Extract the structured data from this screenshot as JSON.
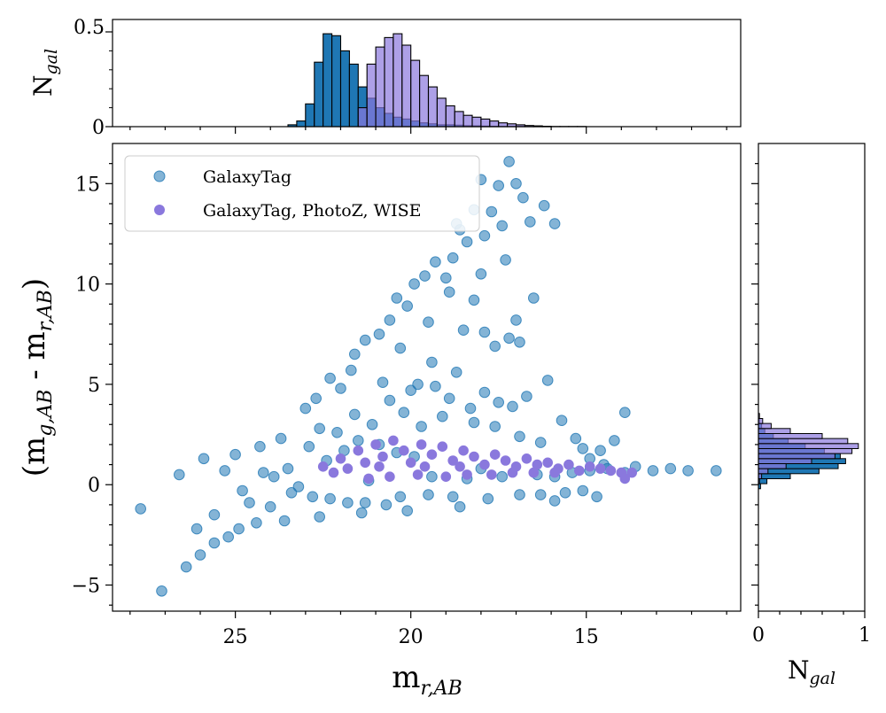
{
  "chart_data": {
    "type": "scatter",
    "layout": "scatter with marginal histograms",
    "main": {
      "xlabel": "m_{r,AB}",
      "ylabel": "(m_{g,AB} - m_{r,AB})",
      "xlim": [
        28.5,
        10.6
      ],
      "ylim": [
        -6.3,
        17.0
      ],
      "x_inverted": true,
      "xticks": [
        25,
        20,
        15
      ],
      "xtick_labels": [
        "25",
        "20",
        "15"
      ],
      "yticks": [
        -5,
        0,
        5,
        10,
        15
      ],
      "ytick_labels": [
        "−5",
        "0",
        "5",
        "10",
        "15"
      ],
      "legend_position": "top-left",
      "series": [
        {
          "name": "GalaxyTag",
          "color": "#1f77b4",
          "alpha": 0.55,
          "points": [
            [
              27.1,
              -5.3
            ],
            [
              26.4,
              -4.1
            ],
            [
              27.7,
              -1.2
            ],
            [
              26.0,
              -3.5
            ],
            [
              25.6,
              -2.9
            ],
            [
              25.2,
              -2.6
            ],
            [
              24.9,
              -2.2
            ],
            [
              24.4,
              -1.9
            ],
            [
              24.0,
              -1.1
            ],
            [
              23.4,
              -0.4
            ],
            [
              22.8,
              -0.6
            ],
            [
              22.3,
              -0.7
            ],
            [
              21.8,
              -0.9
            ],
            [
              21.3,
              -0.9
            ],
            [
              20.7,
              -1.0
            ],
            [
              20.3,
              -0.6
            ],
            [
              19.5,
              -0.5
            ],
            [
              18.8,
              -0.6
            ],
            [
              17.8,
              -0.7
            ],
            [
              16.9,
              -0.5
            ],
            [
              16.3,
              -0.5
            ],
            [
              15.6,
              -0.4
            ],
            [
              15.1,
              -0.3
            ],
            [
              14.7,
              -0.6
            ],
            [
              26.6,
              0.5
            ],
            [
              25.9,
              1.3
            ],
            [
              25.0,
              1.5
            ],
            [
              24.3,
              1.9
            ],
            [
              23.7,
              2.3
            ],
            [
              23.0,
              3.8
            ],
            [
              22.6,
              2.8
            ],
            [
              22.3,
              5.3
            ],
            [
              22.0,
              4.8
            ],
            [
              21.6,
              6.5
            ],
            [
              21.3,
              7.2
            ],
            [
              20.9,
              7.5
            ],
            [
              20.6,
              8.2
            ],
            [
              20.3,
              6.8
            ],
            [
              20.1,
              8.9
            ],
            [
              19.9,
              10.0
            ],
            [
              19.6,
              10.4
            ],
            [
              19.3,
              11.1
            ],
            [
              19.0,
              10.3
            ],
            [
              18.8,
              11.3
            ],
            [
              18.6,
              12.7
            ],
            [
              18.4,
              12.1
            ],
            [
              18.2,
              13.7
            ],
            [
              18.0,
              15.2
            ],
            [
              17.9,
              12.4
            ],
            [
              17.7,
              13.6
            ],
            [
              17.5,
              14.9
            ],
            [
              17.4,
              12.9
            ],
            [
              17.2,
              16.1
            ],
            [
              17.0,
              15.0
            ],
            [
              16.8,
              14.3
            ],
            [
              16.6,
              13.1
            ],
            [
              16.5,
              9.3
            ],
            [
              16.2,
              13.9
            ],
            [
              15.9,
              13.0
            ],
            [
              18.9,
              9.6
            ],
            [
              18.5,
              7.7
            ],
            [
              18.2,
              9.2
            ],
            [
              17.9,
              7.6
            ],
            [
              17.6,
              6.9
            ],
            [
              17.2,
              7.3
            ],
            [
              16.9,
              7.1
            ],
            [
              19.4,
              6.1
            ],
            [
              19.8,
              5.0
            ],
            [
              18.9,
              4.3
            ],
            [
              18.3,
              3.8
            ],
            [
              17.9,
              4.6
            ],
            [
              17.5,
              4.1
            ],
            [
              17.1,
              3.9
            ],
            [
              16.7,
              4.4
            ],
            [
              16.1,
              5.2
            ],
            [
              15.7,
              3.2
            ],
            [
              15.3,
              2.3
            ],
            [
              14.9,
              1.3
            ],
            [
              14.5,
              1.0
            ],
            [
              14.2,
              2.2
            ],
            [
              13.9,
              3.6
            ],
            [
              13.6,
              0.9
            ],
            [
              13.1,
              0.7
            ],
            [
              12.6,
              0.8
            ],
            [
              12.1,
              0.7
            ],
            [
              11.3,
              0.7
            ],
            [
              19.4,
              0.4
            ],
            [
              18.4,
              0.3
            ],
            [
              17.4,
              0.4
            ],
            [
              16.4,
              0.5
            ],
            [
              15.9,
              0.4
            ],
            [
              15.4,
              0.6
            ],
            [
              14.9,
              0.7
            ],
            [
              14.4,
              0.8
            ],
            [
              16.9,
              2.4
            ],
            [
              17.6,
              2.9
            ],
            [
              18.2,
              3.1
            ],
            [
              19.1,
              3.4
            ],
            [
              15.1,
              1.8
            ],
            [
              14.6,
              1.7
            ],
            [
              16.3,
              2.1
            ],
            [
              13.9,
              0.6
            ],
            [
              24.6,
              -0.9
            ],
            [
              23.9,
              0.4
            ],
            [
              23.5,
              0.8
            ],
            [
              22.9,
              1.9
            ],
            [
              22.1,
              2.6
            ],
            [
              21.6,
              3.5
            ],
            [
              21.1,
              3.0
            ],
            [
              20.6,
              4.2
            ],
            [
              20.2,
              3.6
            ],
            [
              19.7,
              2.9
            ],
            [
              26.1,
              -2.2
            ],
            [
              25.6,
              -1.5
            ],
            [
              24.8,
              -0.3
            ],
            [
              24.2,
              0.6
            ],
            [
              22.4,
              1.2
            ],
            [
              21.9,
              1.7
            ],
            [
              21.5,
              2.2
            ],
            [
              20.9,
              2.0
            ],
            [
              20.4,
              1.6
            ],
            [
              19.9,
              1.4
            ],
            [
              25.3,
              0.7
            ],
            [
              23.2,
              -0.1
            ],
            [
              21.2,
              0.2
            ],
            [
              18.0,
              0.8
            ],
            [
              22.7,
              4.3
            ],
            [
              21.7,
              5.7
            ],
            [
              20.8,
              5.1
            ],
            [
              20.0,
              4.7
            ],
            [
              19.3,
              4.9
            ],
            [
              18.7,
              5.6
            ],
            [
              19.5,
              8.1
            ],
            [
              20.4,
              9.3
            ],
            [
              17.0,
              8.2
            ],
            [
              18.0,
              10.5
            ],
            [
              18.7,
              13.0
            ],
            [
              17.3,
              11.2
            ],
            [
              23.6,
              -1.8
            ],
            [
              22.6,
              -1.6
            ],
            [
              21.4,
              -1.4
            ],
            [
              20.1,
              -1.3
            ],
            [
              18.6,
              -1.1
            ],
            [
              15.9,
              -0.8
            ]
          ]
        },
        {
          "name": "GalaxyTag, PhotoZ, WISE",
          "color": "#8a78dd",
          "points": [
            [
              22.5,
              0.9
            ],
            [
              22.2,
              0.6
            ],
            [
              22.0,
              1.3
            ],
            [
              21.8,
              0.8
            ],
            [
              21.5,
              1.7
            ],
            [
              21.3,
              1.1
            ],
            [
              21.0,
              2.0
            ],
            [
              20.8,
              1.4
            ],
            [
              20.5,
              2.2
            ],
            [
              20.2,
              1.7
            ],
            [
              20.0,
              1.1
            ],
            [
              19.7,
              2.0
            ],
            [
              19.4,
              1.5
            ],
            [
              19.1,
              1.9
            ],
            [
              18.8,
              1.2
            ],
            [
              18.5,
              1.7
            ],
            [
              18.2,
              1.4
            ],
            [
              17.9,
              1.0
            ],
            [
              17.6,
              1.5
            ],
            [
              17.3,
              1.2
            ],
            [
              17.0,
              0.9
            ],
            [
              16.7,
              1.3
            ],
            [
              16.4,
              1.0
            ],
            [
              16.1,
              1.1
            ],
            [
              15.8,
              0.8
            ],
            [
              15.5,
              1.0
            ],
            [
              15.2,
              0.7
            ],
            [
              14.9,
              0.9
            ],
            [
              14.6,
              0.8
            ],
            [
              14.3,
              0.7
            ],
            [
              14.0,
              0.6
            ],
            [
              13.7,
              0.6
            ],
            [
              13.9,
              0.3
            ],
            [
              21.2,
              0.3
            ],
            [
              20.6,
              0.4
            ],
            [
              19.8,
              0.5
            ],
            [
              19.0,
              0.4
            ],
            [
              18.4,
              0.5
            ],
            [
              17.7,
              0.5
            ],
            [
              17.1,
              0.6
            ],
            [
              16.5,
              0.6
            ],
            [
              15.9,
              0.6
            ],
            [
              20.9,
              0.9
            ],
            [
              19.6,
              0.9
            ],
            [
              18.6,
              0.9
            ]
          ]
        }
      ]
    },
    "top_histogram": {
      "ylabel": "N_{gal}",
      "yticks": [
        0,
        0.5
      ],
      "ytick_labels": [
        "0",
        "0.5"
      ],
      "bin_start": 23.5,
      "bin_width": 0.25,
      "series": [
        {
          "name": "GalaxyTag",
          "color": "#1f77b4",
          "values": [
            0.01,
            0.03,
            0.12,
            0.34,
            0.49,
            0.48,
            0.4,
            0.33,
            0.21,
            0.15,
            0.1,
            0.07,
            0.05,
            0.04,
            0.03,
            0.02,
            0.015,
            0.01,
            0.01,
            0.008,
            0.005,
            0.004,
            0.003,
            0.002,
            0.001,
            0.001,
            0.001,
            0.001,
            0.001,
            0.001,
            0.0,
            0.0,
            0.0,
            0.0,
            0.0,
            0.0
          ]
        },
        {
          "name": "GalaxyTag, PhotoZ, WISE",
          "color": "#8a78dd",
          "alpha": 0.7,
          "values": [
            0.0,
            0.0,
            0.0,
            0.0,
            0.0,
            0.0,
            0.0,
            0.0,
            0.1,
            0.33,
            0.42,
            0.47,
            0.49,
            0.43,
            0.35,
            0.27,
            0.21,
            0.15,
            0.11,
            0.08,
            0.06,
            0.05,
            0.04,
            0.03,
            0.02,
            0.015,
            0.01,
            0.006,
            0.004,
            0.002,
            0.001,
            0.001,
            0.001,
            0.001,
            0.0,
            0.0
          ]
        }
      ]
    },
    "right_histogram": {
      "xlabel": "N_{gal}",
      "xticks": [
        0,
        1
      ],
      "xtick_labels": [
        "0",
        "1"
      ],
      "bin_start": -0.2,
      "bin_width": 0.25,
      "series": [
        {
          "name": "GalaxyTag",
          "color": "#1f77b4",
          "values": [
            0.02,
            0.08,
            0.3,
            0.57,
            0.75,
            0.82,
            0.77,
            0.62,
            0.44,
            0.28,
            0.14,
            0.06,
            0.03,
            0.01
          ]
        },
        {
          "name": "GalaxyTag, PhotoZ, WISE",
          "color": "#8a78dd",
          "alpha": 0.7,
          "values": [
            0.0,
            0.01,
            0.03,
            0.09,
            0.26,
            0.5,
            0.72,
            0.88,
            0.94,
            0.84,
            0.6,
            0.3,
            0.12,
            0.04,
            0.01
          ]
        }
      ]
    }
  }
}
